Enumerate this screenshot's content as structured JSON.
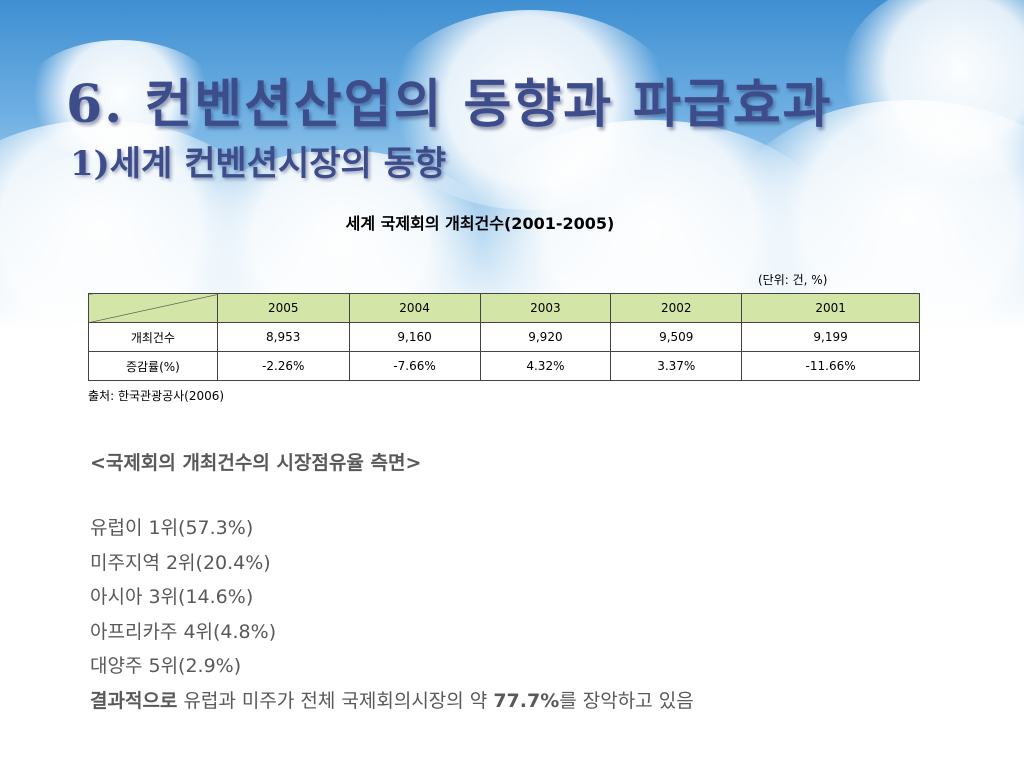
{
  "title": "6. 컨벤션산업의 동향과 파급효과",
  "subtitle": "1)세계 컨벤션시장의 동향",
  "table": {
    "caption": "세계 국제회의 개최건수(2001-2005)",
    "unit": "(단위: 건, %)",
    "headers": [
      "2005",
      "2004",
      "2003",
      "2002",
      "2001"
    ],
    "rows": [
      {
        "label": "개최건수",
        "cells": [
          "8,953",
          "9,160",
          "9,920",
          "9,509",
          "9,199"
        ]
      },
      {
        "label": "증감률(%)",
        "cells": [
          "-2.26%",
          "-7.66%",
          "4.32%",
          "3.37%",
          "-11.66%"
        ]
      }
    ],
    "source": "출처: 한국관광공사(2006)"
  },
  "analysis": {
    "heading": "<국제회의 개최건수의 시장점유율 측면>",
    "items": [
      "유럽이 1위(57.3%)",
      "미주지역 2위(20.4%)",
      "아시아 3위(14.6%)",
      "아프리카주 4위(4.8%)",
      "대양주 5위(2.9%)"
    ],
    "conclusion": {
      "lead": "결과적으로",
      "middle": " 유럽과 미주가 전체 국제회의시장의 약 ",
      "value": "77.7%",
      "tail": "를 장악하고 있음"
    }
  }
}
